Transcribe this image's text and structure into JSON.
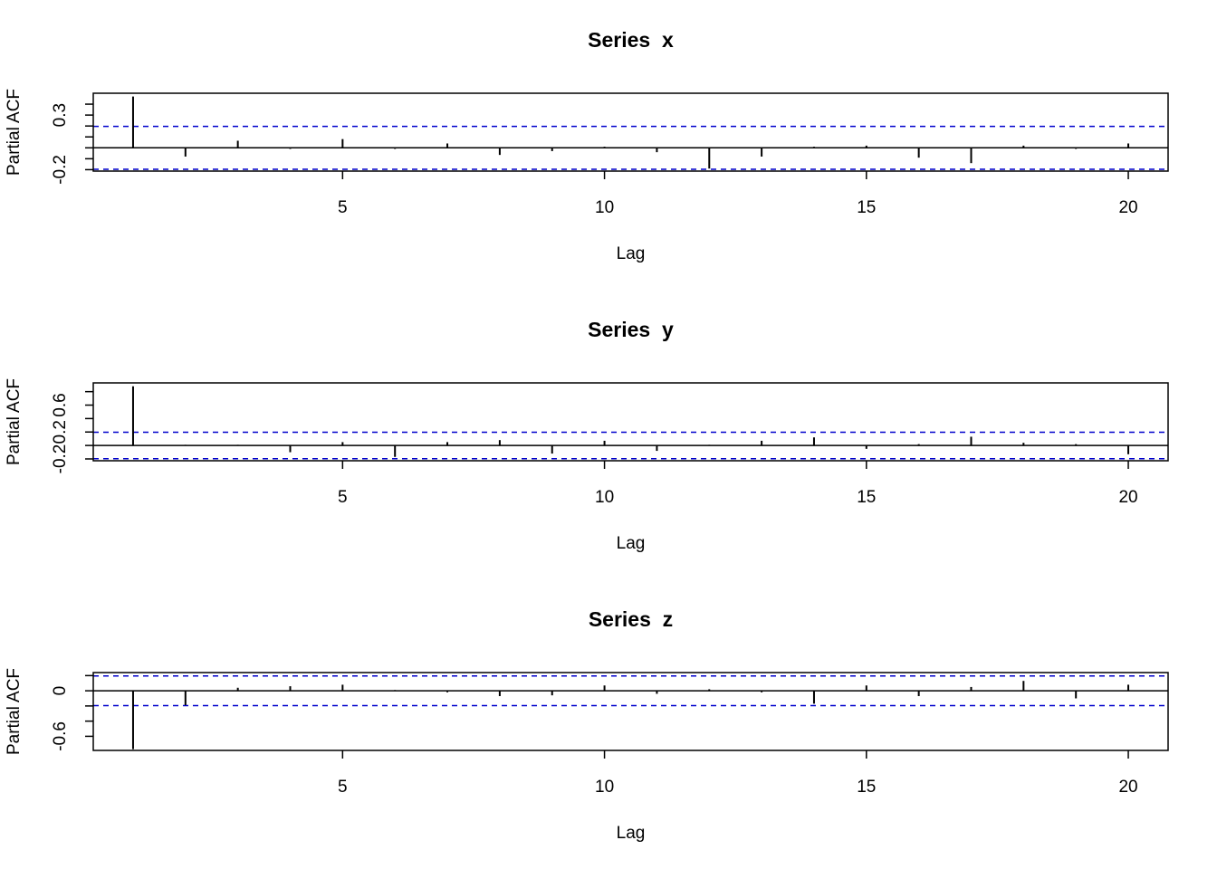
{
  "chart_data": [
    {
      "type": "bar",
      "title": "Series  x",
      "xlabel": "Lag",
      "ylabel": "Partial ACF",
      "color": "#000000",
      "x": [
        1,
        2,
        3,
        4,
        5,
        6,
        7,
        8,
        9,
        10,
        11,
        12,
        13,
        14,
        15,
        16,
        17,
        18,
        19,
        20
      ],
      "values": [
        0.47,
        -0.08,
        0.065,
        -0.01,
        0.08,
        -0.01,
        0.04,
        -0.065,
        -0.03,
        0.01,
        -0.04,
        -0.19,
        -0.08,
        0.01,
        0.02,
        -0.09,
        -0.14,
        0.02,
        -0.01,
        0.04
      ],
      "xlim": [
        0.24,
        20.76
      ],
      "xticks": [
        5,
        10,
        15,
        20
      ],
      "ylim": [
        -0.213,
        0.5
      ],
      "yticks": [
        -0.2,
        0.3
      ],
      "yminor": [
        -0.1,
        0,
        0.1,
        0.2,
        0.4
      ],
      "conf_limits": [
        -0.196,
        0.196
      ],
      "conf_color": "#0000cc"
    },
    {
      "type": "bar",
      "title": "Series  y",
      "xlabel": "Lag",
      "ylabel": "Partial ACF",
      "color": "#000000",
      "x": [
        1,
        2,
        3,
        4,
        5,
        6,
        7,
        8,
        9,
        10,
        11,
        12,
        13,
        14,
        15,
        16,
        17,
        18,
        19,
        20
      ],
      "values": [
        0.88,
        0.01,
        0.01,
        -0.1,
        0.05,
        -0.17,
        0.05,
        0.08,
        -0.12,
        0.07,
        -0.08,
        0.01,
        0.07,
        0.12,
        -0.05,
        0.02,
        0.13,
        0.04,
        0.02,
        -0.13
      ],
      "xlim": [
        0.24,
        20.76
      ],
      "xticks": [
        5,
        10,
        15,
        20
      ],
      "ylim": [
        -0.227,
        0.93
      ],
      "yticks": [
        -0.2,
        0.2,
        0.6
      ],
      "yminor": [
        0,
        0.4,
        0.8
      ],
      "conf_limits": [
        -0.196,
        0.196
      ],
      "conf_color": "#0000cc"
    },
    {
      "type": "bar",
      "title": "Series  z",
      "xlabel": "Lag",
      "ylabel": "Partial ACF",
      "color": "#000000",
      "x": [
        1,
        2,
        3,
        4,
        5,
        6,
        7,
        8,
        9,
        10,
        11,
        12,
        13,
        14,
        15,
        16,
        17,
        18,
        19,
        20
      ],
      "values": [
        -0.77,
        -0.19,
        0.04,
        0.06,
        0.08,
        0.01,
        -0.02,
        -0.07,
        -0.06,
        0.07,
        -0.04,
        0.02,
        -0.02,
        -0.17,
        0.07,
        -0.07,
        0.05,
        0.13,
        -0.1,
        0.08
      ],
      "xlim": [
        0.24,
        20.76
      ],
      "xticks": [
        5,
        10,
        15,
        20
      ],
      "ylim": [
        -0.786,
        0.24
      ],
      "yticks": [
        -0.6,
        0.0
      ],
      "yminor": [
        -0.4,
        -0.2,
        0.2
      ],
      "conf_limits": [
        -0.196,
        0.196
      ],
      "conf_color": "#0000cc"
    }
  ]
}
